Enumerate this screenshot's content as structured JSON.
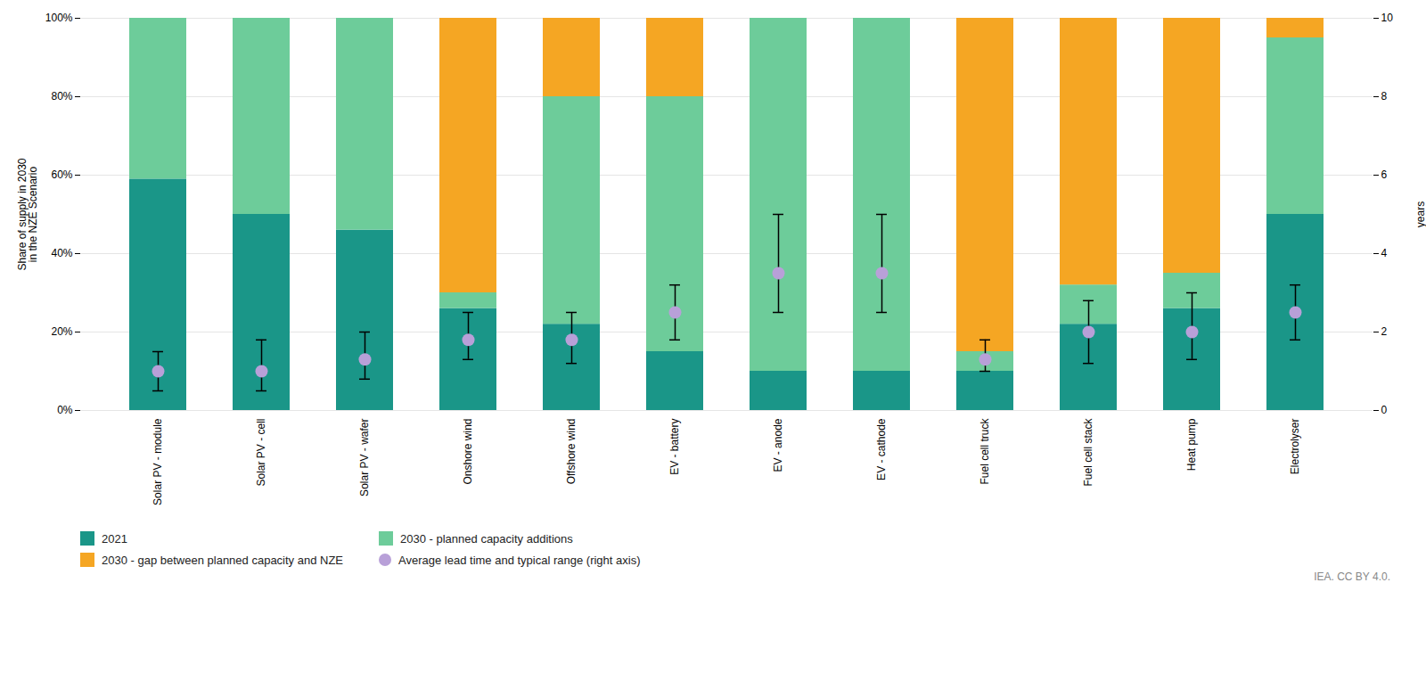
{
  "chart_data": {
    "type": "bar",
    "stacked": true,
    "categories": [
      "Solar PV - module",
      "Solar PV - cell",
      "Solar PV - wafer",
      "Onshore wind",
      "Offshore wind",
      "EV - battery",
      "EV - anode",
      "EV - cathode",
      "Fuel cell truck",
      "Fuel cell stack",
      "Heat pump",
      "Electrolyser"
    ],
    "series": [
      {
        "name": "2021",
        "color": "#1a9688",
        "values": [
          0.59,
          0.5,
          0.46,
          0.26,
          0.22,
          0.15,
          0.1,
          0.1,
          0.1,
          0.22,
          0.26,
          0.5
        ]
      },
      {
        "name": "2030 - planned capacity additions",
        "color": "#6dcc9a",
        "values": [
          0.41,
          0.5,
          0.54,
          0.04,
          0.58,
          0.65,
          0.9,
          0.9,
          0.05,
          0.1,
          0.09,
          0.45
        ]
      },
      {
        "name": "2030 - gap between planned capacity and NZE",
        "color": "#f5a623",
        "values": [
          0.0,
          0.0,
          0.0,
          0.7,
          0.2,
          0.2,
          0.0,
          0.0,
          0.85,
          0.68,
          0.65,
          0.05
        ]
      },
      {
        "name": "Average lead time and typical range (right axis)",
        "color": "#b8a0d8",
        "type": "scatter",
        "marker": "circle",
        "axis": "y2",
        "values": [
          1.0,
          1.0,
          1.3,
          1.8,
          1.8,
          2.5,
          3.5,
          3.5,
          1.3,
          2.0,
          2.0,
          2.5
        ],
        "low": [
          0.5,
          0.5,
          0.8,
          1.3,
          1.2,
          1.8,
          2.5,
          2.5,
          1.0,
          1.2,
          1.3,
          1.8
        ],
        "high": [
          1.5,
          1.8,
          2.0,
          2.5,
          2.5,
          3.2,
          5.0,
          5.0,
          1.8,
          2.8,
          3.0,
          3.2
        ]
      }
    ],
    "ylabel": "Share of supply in 2030\nin the NZE Scenario",
    "y2label": "years",
    "ylim": [
      0,
      1.0
    ],
    "yticks": [
      {
        "value": 0,
        "label": "0%"
      },
      {
        "value": 0.2,
        "label": "20%"
      },
      {
        "value": 0.4,
        "label": "40%"
      },
      {
        "value": 0.6,
        "label": "60%"
      },
      {
        "value": 0.8,
        "label": "80%"
      },
      {
        "value": 1.0,
        "label": "100%"
      }
    ],
    "y2lim": [
      0,
      10
    ],
    "y2ticks": [
      0,
      2,
      4,
      6,
      8,
      10
    ],
    "grid": true,
    "legend": "lower left",
    "annotations": [
      "IEA. CC BY 4.0."
    ]
  }
}
